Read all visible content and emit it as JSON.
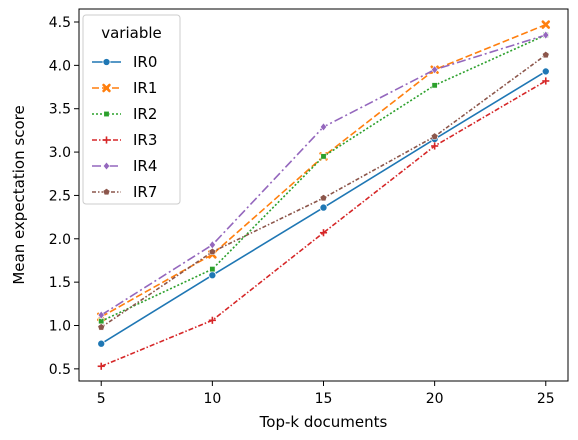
{
  "chart_data": {
    "type": "line",
    "x": [
      5,
      10,
      15,
      20,
      25
    ],
    "xlabel": "Top-k documents",
    "ylabel": "Mean expectation score",
    "xlim": [
      4,
      26
    ],
    "ylim": [
      0.36,
      4.65
    ],
    "xticks": [
      5,
      10,
      15,
      20,
      25
    ],
    "yticks": [
      0.5,
      1.0,
      1.5,
      2.0,
      2.5,
      3.0,
      3.5,
      4.0,
      4.5
    ],
    "yticks_labels": [
      "0.5",
      "1.0",
      "1.5",
      "2.0",
      "2.5",
      "3.0",
      "3.5",
      "4.0",
      "4.5"
    ],
    "grid": false,
    "legend": {
      "title": "variable",
      "placement": "top-left"
    },
    "series": [
      {
        "name": "IR0",
        "values": [
          0.79,
          1.58,
          2.36,
          3.15,
          3.93
        ],
        "color": "#1f77b4",
        "dash": "solid",
        "marker": "circle"
      },
      {
        "name": "IR1",
        "values": [
          1.1,
          1.82,
          2.95,
          3.95,
          4.47
        ],
        "color": "#ff7f0e",
        "dash": "dashed",
        "marker": "x"
      },
      {
        "name": "IR2",
        "values": [
          1.05,
          1.65,
          2.95,
          3.77,
          4.35
        ],
        "color": "#2ca02c",
        "dash": "dotted",
        "marker": "square"
      },
      {
        "name": "IR3",
        "values": [
          0.53,
          1.06,
          2.07,
          3.07,
          3.82
        ],
        "color": "#d62728",
        "dash": "dashdot-dense",
        "marker": "plus"
      },
      {
        "name": "IR4",
        "values": [
          1.12,
          1.93,
          3.29,
          3.95,
          4.35
        ],
        "color": "#9467bd",
        "dash": "dashdot",
        "marker": "diamond"
      },
      {
        "name": "IR7",
        "values": [
          0.98,
          1.85,
          2.47,
          3.18,
          4.12
        ],
        "color": "#8c564b",
        "dash": "dashdot-sparse",
        "marker": "pentagon"
      }
    ]
  }
}
